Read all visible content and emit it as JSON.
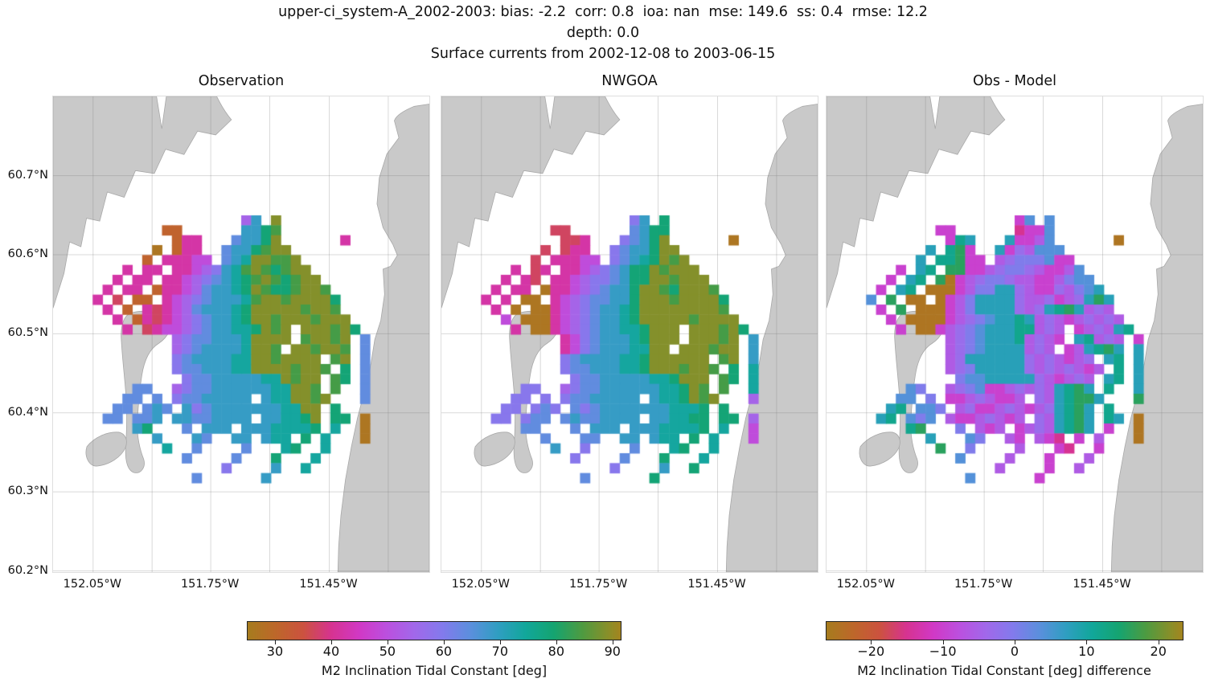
{
  "header": {
    "line1": "upper-ci_system-A_2002-2003: bias: -2.2  corr: 0.8  ioa: nan  mse: 149.6  ss: 0.4  rmse: 12.2",
    "line2": "depth: 0.0",
    "line3": "Surface currents from 2002-12-08 to 2003-06-15",
    "stats": {
      "dataset": "upper-ci_system-A_2002-2003",
      "bias": -2.2,
      "corr": 0.8,
      "ioa": "nan",
      "mse": 149.6,
      "ss": 0.4,
      "rmse": 12.2,
      "depth": 0.0,
      "period_start": "2002-12-08",
      "period_end": "2003-06-15"
    }
  },
  "axes": {
    "lat_ticks": [
      "60.7°N",
      "60.6°N",
      "60.5°N",
      "60.4°N",
      "60.3°N",
      "60.2°N"
    ],
    "lon_ticks": [
      "152.05°W",
      "151.75°W",
      "151.45°W"
    ]
  },
  "chart_data": {
    "type": "heatmap",
    "variable": "M2 Inclination Tidal Constant",
    "units": "deg",
    "region": {
      "lat_range": [
        60.2,
        60.8
      ],
      "lon_labels": [
        "152.05°W",
        "151.75°W",
        "151.45°W"
      ]
    },
    "colormap_stops": [
      [
        0.0,
        "#a67c1e"
      ],
      [
        0.075,
        "#bd672a"
      ],
      [
        0.149,
        "#cc523f"
      ],
      [
        0.224,
        "#d63390"
      ],
      [
        0.299,
        "#d138c5"
      ],
      [
        0.373,
        "#bb50df"
      ],
      [
        0.448,
        "#a168ea"
      ],
      [
        0.522,
        "#837aec"
      ],
      [
        0.597,
        "#5b8fdd"
      ],
      [
        0.672,
        "#2f9ec1"
      ],
      [
        0.746,
        "#11a79a"
      ],
      [
        0.821,
        "#15a470"
      ],
      [
        0.896,
        "#4d9b41"
      ],
      [
        0.97,
        "#8c8e28"
      ],
      [
        1.0,
        "#a4841f"
      ]
    ],
    "panels": [
      {
        "title": "Observation",
        "vmin": 25.0,
        "vmax": 91.6,
        "palette": {
          "d": 26.5,
          "o": 31,
          "r": 37,
          "m": 42,
          "v": 49,
          "p": 54,
          "l": 59,
          "b": 64,
          "c": 69,
          "t": 74,
          "g": 79,
          "e": 84,
          "y": 89
        },
        "rows": [
          "...............pc.y",
          ".......oo......ccge",
          "........omm...bccgy......m",
          "......d.omm..bccgeyy",
          ".....o.mmmvv.bctyyeey",
          "...m.mm.mmvplcteyegeyy",
          "..m.mm.mmvplbctgeyegeyy",
          ".m.mm.ommvpbcctgyeggeyye",
          "m.r.oo.mvplbcccteyyeyyyyg",
          ".m.o.mrmvpbccctgyyyyyeyye",
          "..m.omrmvplbcctgyyeyyyeyyy",
          "...m.rmvvplbccttgyey.yyyeyg",
          "........plbbccctyyyy.eyyey.b",
          "........plbcccctyye.yyeyye.b",
          "........lbccccttyyeyyyy.ey.b",
          "........lbbcccttyyyyeyye.g.b",
          ".........lbbcccccttyeyy.eg.b",
          "....bb..plbbccccccttyye.e..b",
          "...bb.b.lbbccccc.cttyyey...b",
          "..bb.bcb.clbcccccccttyy.g",
          ".bb.bbc.ccbbcccc.ccttgy.gg.d",
          "....cg...b.ccc.cccttttg.t..d",
          "......c...cb..cc.ctt.g.t...d",
          ".......t..b....b...tg..t",
          ".........b....b...g...t",
          ".............l....c..t",
          "..........b......c",
          ""
        ]
      },
      {
        "title": "NWGOA",
        "vmin": 25.0,
        "vmax": 91.6,
        "palette": {
          "d": 26.5,
          "o": 31,
          "r": 37,
          "m": 42,
          "v": 49,
          "p": 54,
          "l": 59,
          "b": 64,
          "c": 69,
          "t": 74,
          "g": 79,
          "e": 84,
          "y": 89
        },
        "rows": [
          "...............lc.g",
          ".......rr......bcgg",
          "........rrm...lbcgy......d",
          "......r.rmm..lbccgyy",
          ".....r.mmmvv.lbctgyey",
          "...m.rm.mmvplbcggyeyyy",
          "..m.mr.mmvpllbcggyyeyyy",
          ".m.mm.dmmvplbccgyyegyyye",
          "m.m.dd.mvplbbccgyyyeyyyyg",
          ".m.d.ddmvplbcctgyyyyyyyye",
          "..v.dddmvplbcctgyyyyyeyyyy",
          "...m.ddmvplbccttgyyy.yyyeyg",
          "........mvlbccctgyyy.yyyey.c",
          "........mvlbcccttyy.yyyeyy.c",
          "........lbccccttgyyyyyy.ey.c",
          "........lbbcccttgyyyeyye.g.t",
          ".........lbbcccccttgyyy.eg.t",
          "....ll..plbbccccccttgye.e..t",
          "...ll.l.lbbccccc.cttgyey...p",
          "..ll.lbl.blbccccccctttg.g",
          ".ll.lbb.bcbbcccc.ccttgg.gg.p",
          "....bb...b.ccc.cccttttg.t..v",
          "......b...bb..cc.ctt.g.t...v",
          ".......c..l....b...tg..t",
          ".........l....b...g...t",
          ".............l....c..g",
          "..........b......g",
          ""
        ]
      },
      {
        "title": "Obs - Model",
        "vmin": -26.3,
        "vmax": 23.5,
        "palette": {
          "d": -25,
          "o": -20,
          "r": -15,
          "m": -10,
          "v": -6,
          "p": -3,
          "l": 0,
          "b": 4,
          "c": 8,
          "t": 12,
          "g": 16,
          "e": 20,
          "y": 23
        },
        "rows": [
          "...............mb.b",
          ".......mm......rmmb",
          "........mtc...cmmvb......d",
          "......c.tgm..cmpvbbb",
          ".....c.ttgmm.vplllbmm",
          "...m.ct.ggmmvpllpvmmvb",
          "..m.ct.gdmvpllpvvmmvlbb",
          ".m.ct.dddmvllccpvmmpvlbc",
          "b.g.dd.dmvlccccpvvpmvpcgc",
          ".m.g.dddmvlccccpvpctgcvpv",
          "..m.ddddmvplbcctcvpvmvpvpv",
          "...m.ddmvplbcccttvpv.mvpvct",
          "........vplbccctvpvm.ctvpv.m",
          "........vplbccccvpv.mvctgc.c",
          "........vpccccccpvpvmvp.ct.c",
          "........vplcccccpvpvpvmv.t.c",
          ".........lbbcccccpvmvpv.ct.c",
          "....bl..vplbmmvpvpvctgc.t..c",
          "...bb.l.mmvpvmmv.pvctggc...g",
          "..ct.bbl.vpmmvpvmvpctgc.t",
          ".ct.blb.vmmvpvmv.pvctgc.tc.d",
          "....tg...l.vmv.mvpvctgc.m..d",
          "......c...bl..vm.vmr.m.v...d",
          ".......g..l....v...mr..m",
          ".........b....v...m...v",
          ".............v....m..v",
          "..........b......m",
          ""
        ]
      }
    ],
    "colorbars": [
      {
        "label": "M2 Inclination Tidal Constant [deg]",
        "ticks": [
          "30",
          "40",
          "50",
          "60",
          "70",
          "80",
          "90"
        ],
        "tick_values": [
          30,
          40,
          50,
          60,
          70,
          80,
          90
        ],
        "vmin": 25.0,
        "vmax": 91.6
      },
      {
        "label": "M2 Inclination Tidal Constant [deg] difference",
        "ticks": [
          "−20",
          "−10",
          "0",
          "10",
          "20"
        ],
        "tick_values": [
          -20,
          -10,
          0,
          10,
          20
        ],
        "vmin": -26.3,
        "vmax": 23.5
      }
    ]
  },
  "colors": {
    "land": "#c9c9c9",
    "land_edge": "#a8a8a8",
    "grid_line": "rgba(120,120,120,0.28)",
    "background": "#ffffff",
    "text": "#111111"
  }
}
